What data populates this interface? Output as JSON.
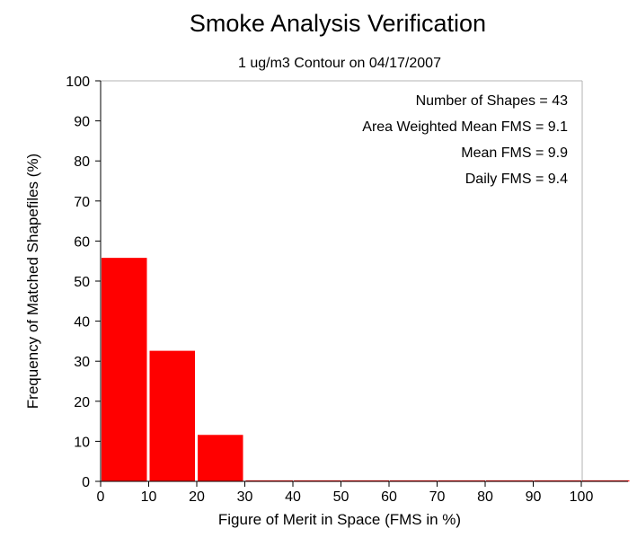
{
  "chart_data": {
    "type": "bar",
    "title": "Smoke Analysis Verification",
    "subtitle": "1 ug/m3 Contour on 04/17/2007",
    "xlabel": "Figure of Merit in Space (FMS in %)",
    "ylabel": "Frequency of Matched Shapefiles (%)",
    "xlim": [
      0,
      110
    ],
    "ylim": [
      0,
      100
    ],
    "x_ticks": [
      0,
      10,
      20,
      30,
      40,
      50,
      60,
      70,
      80,
      90,
      100
    ],
    "y_ticks": [
      0,
      10,
      20,
      30,
      40,
      50,
      60,
      70,
      80,
      90,
      100
    ],
    "bins": [
      {
        "start": 0,
        "end": 10,
        "value": 55.8
      },
      {
        "start": 10,
        "end": 20,
        "value": 32.6
      },
      {
        "start": 20,
        "end": 30,
        "value": 11.6
      },
      {
        "start": 30,
        "end": 40,
        "value": 0
      },
      {
        "start": 40,
        "end": 50,
        "value": 0
      },
      {
        "start": 50,
        "end": 60,
        "value": 0
      },
      {
        "start": 60,
        "end": 70,
        "value": 0
      },
      {
        "start": 70,
        "end": 80,
        "value": 0
      },
      {
        "start": 80,
        "end": 90,
        "value": 0
      },
      {
        "start": 90,
        "end": 100,
        "value": 0
      },
      {
        "start": 100,
        "end": 110,
        "value": 0
      }
    ],
    "annotations": [
      "Number of Shapes = 43",
      "Area Weighted Mean FMS = 9.1",
      "Mean FMS = 9.9",
      "Daily FMS = 9.4"
    ],
    "grid": false,
    "colors": {
      "bar": "#ff0000",
      "frame": "#b3b3b3",
      "axis": "#000000"
    }
  }
}
